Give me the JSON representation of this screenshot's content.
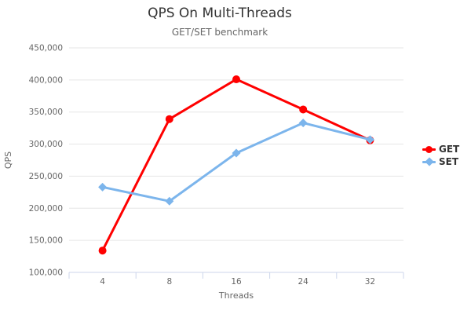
{
  "chart_data": {
    "type": "line",
    "title": "QPS On Multi-Threads",
    "subtitle": "GET/SET benchmark",
    "xlabel": "Threads",
    "ylabel": "QPS",
    "categories": [
      "4",
      "8",
      "16",
      "24",
      "32"
    ],
    "series": [
      {
        "name": "GET",
        "color": "#ff0000",
        "marker": "circle",
        "values": [
          134000,
          339000,
          401000,
          354000,
          306000
        ]
      },
      {
        "name": "SET",
        "color": "#7cb5ec",
        "marker": "diamond",
        "values": [
          233000,
          211000,
          286000,
          333000,
          307000
        ]
      }
    ],
    "ylim": [
      100000,
      450000
    ],
    "y_tick_step": 50000,
    "y_tick_labels": [
      "100,000",
      "150,000",
      "200,000",
      "250,000",
      "300,000",
      "350,000",
      "400,000",
      "450,000"
    ],
    "grid": true,
    "legend_position": "right"
  },
  "colors": {
    "background": "#ffffff",
    "title": "#333333",
    "subtitle": "#666666",
    "axis_label": "#666666",
    "grid_line": "#e6e6e6",
    "axis_line": "#ccd6eb",
    "legend_text": "#333333"
  }
}
